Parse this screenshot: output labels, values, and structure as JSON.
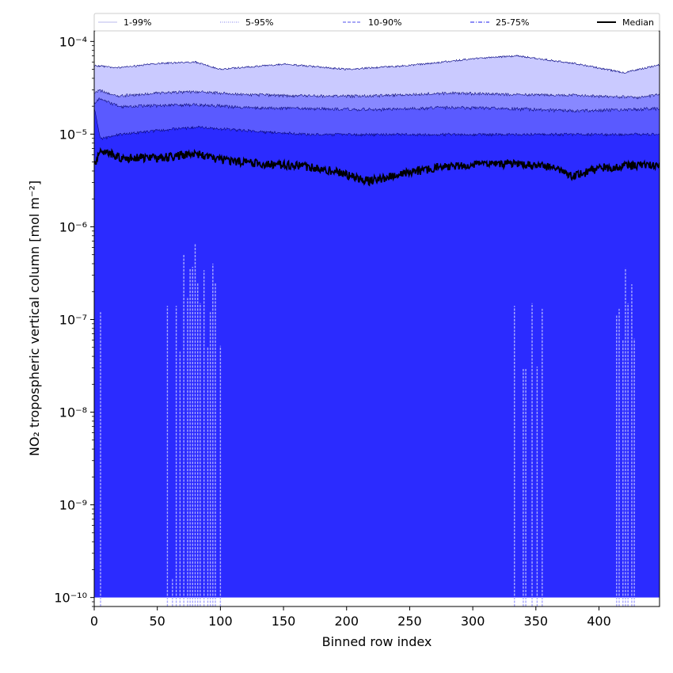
{
  "chart_data": {
    "type": "area",
    "title": "",
    "xlabel": "Binned row index",
    "ylabel": "NO₂ tropospheric vertical column [mol m⁻²]",
    "yscale": "log",
    "xlim": [
      0,
      448
    ],
    "ylim": [
      8e-11,
      0.00013
    ],
    "x_ticks": [
      0,
      50,
      100,
      150,
      200,
      250,
      300,
      350,
      400
    ],
    "x_tick_labels": [
      "0",
      "50",
      "100",
      "150",
      "200",
      "250",
      "300",
      "350",
      "400"
    ],
    "y_ticks": [
      1e-10,
      1e-09,
      1e-08,
      1e-07,
      1e-06,
      1e-05,
      0.0001
    ],
    "y_tick_labels": [
      "10⁻¹⁰",
      "10⁻⁹",
      "10⁻⁸",
      "10⁻⁷",
      "10⁻⁶",
      "10⁻⁵",
      "10⁻⁴"
    ],
    "grid": false,
    "legend_position": "top",
    "legend": [
      {
        "label": "1-99%",
        "color": "#c8c8f0",
        "dash": "solid"
      },
      {
        "label": "5-95%",
        "color": "#9a9af0",
        "dash": "dotted"
      },
      {
        "label": "10-90%",
        "color": "#7070f0",
        "dash": "dashed"
      },
      {
        "label": "25-75%",
        "color": "#4848f0",
        "dash": "dashdot"
      },
      {
        "label": "Median",
        "color": "#000000",
        "dash": "solid"
      }
    ],
    "bands": [
      {
        "name": "1-99%",
        "color": "#2b2bff",
        "lower": 1e-10,
        "upper": [
          [
            0,
            2e-05
          ],
          [
            5,
            9e-06
          ],
          [
            20,
            1e-05
          ],
          [
            50,
            1.1e-05
          ],
          [
            80,
            1.2e-05
          ],
          [
            120,
            1.1e-05
          ],
          [
            170,
            1e-05
          ],
          [
            220,
            1e-05
          ],
          [
            280,
            1e-05
          ],
          [
            330,
            1e-05
          ],
          [
            380,
            1e-05
          ],
          [
            448,
            1e-05
          ]
        ]
      },
      {
        "name": "25-75%",
        "color": "#5a5aff",
        "lower": [
          [
            0,
            2e-05
          ],
          [
            5,
            9e-06
          ],
          [
            20,
            1e-05
          ],
          [
            50,
            1.1e-05
          ],
          [
            80,
            1.2e-05
          ],
          [
            120,
            1.1e-05
          ],
          [
            170,
            1e-05
          ],
          [
            220,
            1e-05
          ],
          [
            280,
            1e-05
          ],
          [
            330,
            1e-05
          ],
          [
            380,
            1e-05
          ],
          [
            448,
            1e-05
          ]
        ],
        "upper": [
          [
            0,
            2.2e-05
          ],
          [
            4,
            2.4e-05
          ],
          [
            20,
            2e-05
          ],
          [
            50,
            2.05e-05
          ],
          [
            80,
            2.1e-05
          ],
          [
            120,
            1.95e-05
          ],
          [
            170,
            1.9e-05
          ],
          [
            220,
            1.85e-05
          ],
          [
            280,
            1.95e-05
          ],
          [
            330,
            1.9e-05
          ],
          [
            380,
            1.8e-05
          ],
          [
            448,
            1.9e-05
          ]
        ]
      },
      {
        "name": "10-90%",
        "color": "#8888ff",
        "lower": [
          [
            0,
            2.2e-05
          ],
          [
            4,
            2.4e-05
          ],
          [
            20,
            2e-05
          ],
          [
            50,
            2.05e-05
          ],
          [
            80,
            2.1e-05
          ],
          [
            120,
            1.95e-05
          ],
          [
            170,
            1.9e-05
          ],
          [
            220,
            1.85e-05
          ],
          [
            280,
            1.95e-05
          ],
          [
            330,
            1.9e-05
          ],
          [
            380,
            1.8e-05
          ],
          [
            448,
            1.9e-05
          ]
        ],
        "upper": [
          [
            0,
            2.8e-05
          ],
          [
            4,
            3e-05
          ],
          [
            20,
            2.6e-05
          ],
          [
            50,
            2.8e-05
          ],
          [
            80,
            2.9e-05
          ],
          [
            120,
            2.7e-05
          ],
          [
            170,
            2.6e-05
          ],
          [
            220,
            2.6e-05
          ],
          [
            280,
            2.8e-05
          ],
          [
            330,
            2.7e-05
          ],
          [
            380,
            2.65e-05
          ],
          [
            430,
            2.5e-05
          ],
          [
            448,
            2.7e-05
          ]
        ]
      },
      {
        "name": "5-95%",
        "color": "#cacaff",
        "lower": [
          [
            0,
            2.8e-05
          ],
          [
            4,
            3e-05
          ],
          [
            20,
            2.6e-05
          ],
          [
            50,
            2.8e-05
          ],
          [
            80,
            2.9e-05
          ],
          [
            120,
            2.7e-05
          ],
          [
            170,
            2.6e-05
          ],
          [
            220,
            2.6e-05
          ],
          [
            280,
            2.8e-05
          ],
          [
            330,
            2.7e-05
          ],
          [
            380,
            2.65e-05
          ],
          [
            430,
            2.5e-05
          ],
          [
            448,
            2.7e-05
          ]
        ],
        "upper": [
          [
            0,
            5.5e-05
          ],
          [
            20,
            5.2e-05
          ],
          [
            50,
            5.8e-05
          ],
          [
            80,
            6e-05
          ],
          [
            100,
            5e-05
          ],
          [
            150,
            5.7e-05
          ],
          [
            200,
            5e-05
          ],
          [
            250,
            5.5e-05
          ],
          [
            300,
            6.5e-05
          ],
          [
            335,
            7e-05
          ],
          [
            380,
            5.8e-05
          ],
          [
            420,
            4.6e-05
          ],
          [
            448,
            5.6e-05
          ]
        ]
      }
    ],
    "median": [
      [
        0,
        4.5e-06
      ],
      [
        4,
        6.8e-06
      ],
      [
        20,
        5.6e-06
      ],
      [
        50,
        5.5e-06
      ],
      [
        80,
        6.2e-06
      ],
      [
        100,
        5.3e-06
      ],
      [
        130,
        4.8e-06
      ],
      [
        160,
        4.6e-06
      ],
      [
        190,
        4e-06
      ],
      [
        218,
        3.1e-06
      ],
      [
        240,
        3.6e-06
      ],
      [
        270,
        4.3e-06
      ],
      [
        300,
        4.7e-06
      ],
      [
        330,
        4.8e-06
      ],
      [
        360,
        4.4e-06
      ],
      [
        380,
        3.5e-06
      ],
      [
        400,
        4.3e-06
      ],
      [
        430,
        4.6e-06
      ],
      [
        448,
        4.6e-06
      ]
    ],
    "spikes": [
      {
        "x": 5,
        "top": 1.2e-07
      },
      {
        "x": 58,
        "top": 1.4e-07
      },
      {
        "x": 62,
        "top": 1.6e-10
      },
      {
        "x": 65,
        "top": 1.4e-07
      },
      {
        "x": 68,
        "top": 4.5e-08
      },
      {
        "x": 71,
        "top": 5e-07
      },
      {
        "x": 74,
        "top": 1.7e-07
      },
      {
        "x": 76,
        "top": 3.5e-07
      },
      {
        "x": 78,
        "top": 3.7e-07
      },
      {
        "x": 80,
        "top": 6.5e-07
      },
      {
        "x": 82,
        "top": 2.5e-07
      },
      {
        "x": 84,
        "top": 1.5e-07
      },
      {
        "x": 87,
        "top": 3.4e-07
      },
      {
        "x": 90,
        "top": 5e-08
      },
      {
        "x": 92,
        "top": 1.2e-07
      },
      {
        "x": 94,
        "top": 4e-07
      },
      {
        "x": 96,
        "top": 2.5e-07
      },
      {
        "x": 100,
        "top": 5.2e-08
      },
      {
        "x": 333,
        "top": 1.4e-07
      },
      {
        "x": 340,
        "top": 3e-08
      },
      {
        "x": 342,
        "top": 3e-08
      },
      {
        "x": 347,
        "top": 1.5e-07
      },
      {
        "x": 351,
        "top": 3.1e-08
      },
      {
        "x": 355,
        "top": 1.3e-07
      },
      {
        "x": 414,
        "top": 1.1e-07
      },
      {
        "x": 416,
        "top": 1.3e-07
      },
      {
        "x": 419,
        "top": 6e-08
      },
      {
        "x": 421,
        "top": 3.6e-07
      },
      {
        "x": 423,
        "top": 1.5e-07
      },
      {
        "x": 426,
        "top": 2.4e-07
      },
      {
        "x": 428,
        "top": 6.2e-08
      }
    ]
  }
}
